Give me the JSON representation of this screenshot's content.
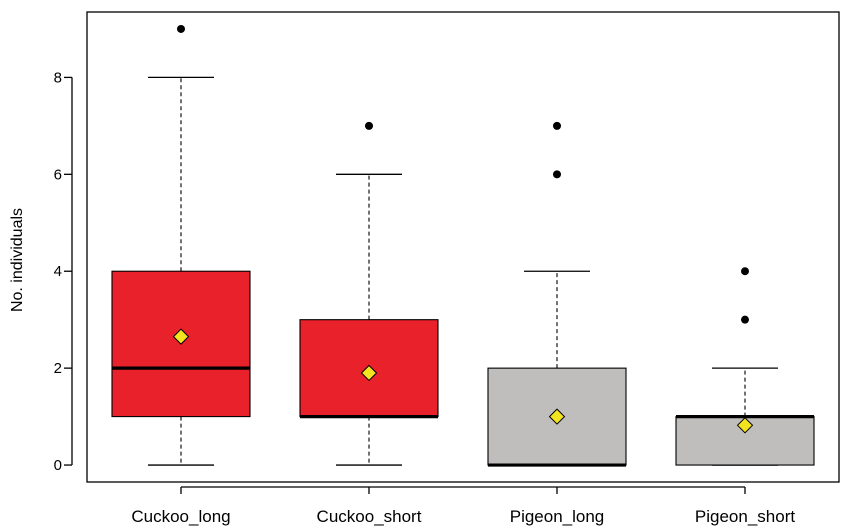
{
  "chart_data": {
    "type": "boxplot",
    "title": "",
    "xlabel": "",
    "ylabel": "No. individuals",
    "ylim": [
      -0.35,
      9.35
    ],
    "yticks": [
      0,
      2,
      4,
      6,
      8
    ],
    "grid": false,
    "legend": "none",
    "mean_marker_color": "#f2e520",
    "groups": [
      {
        "name": "Cuckoo_long",
        "color": "#e8212a",
        "whisker_low": 0,
        "q1": 1,
        "median": 2,
        "q3": 4,
        "whisker_high": 8,
        "mean": 2.65,
        "outliers": [
          9
        ]
      },
      {
        "name": "Cuckoo_short",
        "color": "#e8212a",
        "whisker_low": 0,
        "q1": 1,
        "median": 1,
        "q3": 3,
        "whisker_high": 6,
        "mean": 1.9,
        "outliers": [
          7
        ]
      },
      {
        "name": "Pigeon_long",
        "color": "#c0bdbd",
        "whisker_low": 0,
        "q1": 0,
        "median": 0,
        "q3": 2,
        "whisker_high": 4,
        "mean": 1.0,
        "outliers": [
          6,
          7
        ]
      },
      {
        "name": "Pigeon_short",
        "color": "#c0bdbd",
        "whisker_low": 0,
        "q1": 0,
        "median": 1,
        "q3": 1,
        "whisker_high": 2,
        "mean": 0.82,
        "outliers": [
          3,
          4
        ]
      }
    ]
  }
}
